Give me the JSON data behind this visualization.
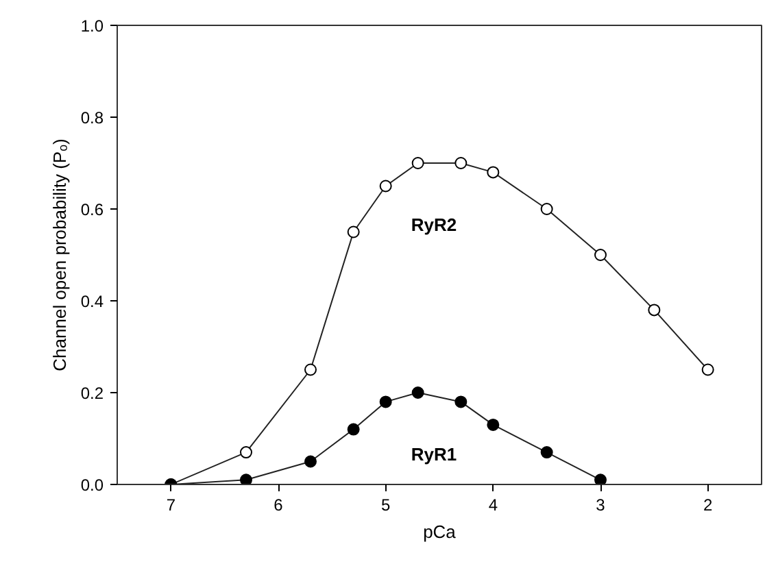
{
  "chart_data": {
    "type": "line",
    "xlabel": "pCa",
    "ylabel": "Channel open probability (Pₒ)",
    "xlim": [
      7.5,
      1.5
    ],
    "xticks": [
      7,
      6,
      5,
      4,
      3,
      2
    ],
    "ylim": [
      0,
      1.0
    ],
    "yticks": [
      {
        "value": 0,
        "label": "0.0"
      },
      {
        "value": 0.2,
        "label": "0.2"
      },
      {
        "value": 0.4,
        "label": "0.4"
      },
      {
        "value": 0.6,
        "label": "0.6"
      },
      {
        "value": 0.8,
        "label": "0.8"
      },
      {
        "value": 1.0,
        "label": "1.0"
      }
    ],
    "marker": "circle",
    "line_style": "solid",
    "grid": false,
    "series": [
      {
        "name": "RyR2",
        "color": "#ffffff",
        "x": [
          7,
          6.3,
          5.7,
          5.3,
          5,
          4.7,
          4.3,
          4,
          3.5,
          3,
          2.5,
          2
        ],
        "values": [
          0,
          0.07,
          0.25,
          0.55,
          0.65,
          0.7,
          0.7,
          0.68,
          0.6,
          0.5,
          0.38,
          0.25
        ]
      },
      {
        "name": "RyR1",
        "color": "#000000",
        "x": [
          7,
          6.3,
          5.7,
          5.3,
          5,
          4.7,
          4.3,
          4,
          3.5,
          3
        ],
        "values": [
          0,
          0.01,
          0.05,
          0.12,
          0.18,
          0.2,
          0.18,
          0.13,
          0.07,
          0.01
        ]
      }
    ]
  }
}
